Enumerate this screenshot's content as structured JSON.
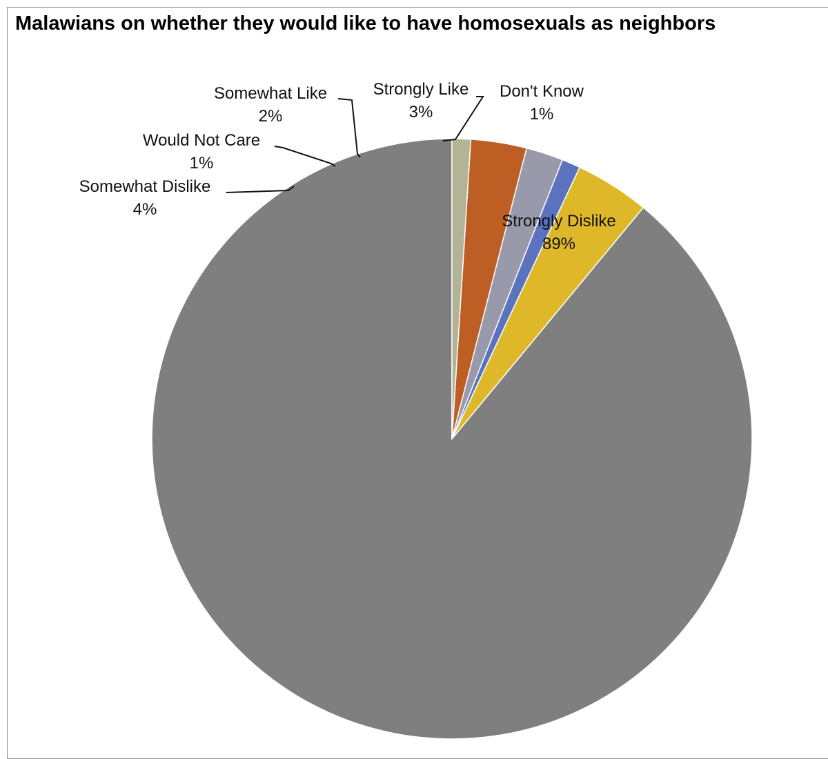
{
  "chart_data": {
    "type": "pie",
    "title": "Malawians on whether they would like to have homosexuals as neighbors",
    "start_angle_deg": 0,
    "direction": "counterclockwise",
    "slices": [
      {
        "label": "Strongly Dislike",
        "value": 89,
        "value_label": "89%",
        "color": "#7f7f7f"
      },
      {
        "label": "Somewhat Dislike",
        "value": 4,
        "value_label": "4%",
        "color": "#dfb82a"
      },
      {
        "label": "Would Not Care",
        "value": 1,
        "value_label": "1%",
        "color": "#5b73be"
      },
      {
        "label": "Somewhat Like",
        "value": 2,
        "value_label": "2%",
        "color": "#9899ab"
      },
      {
        "label": "Strongly Like",
        "value": 3,
        "value_label": "3%",
        "color": "#bd5e25"
      },
      {
        "label": "Don't Know",
        "value": 1,
        "value_label": "1%",
        "color": "#b3b496"
      }
    ]
  }
}
